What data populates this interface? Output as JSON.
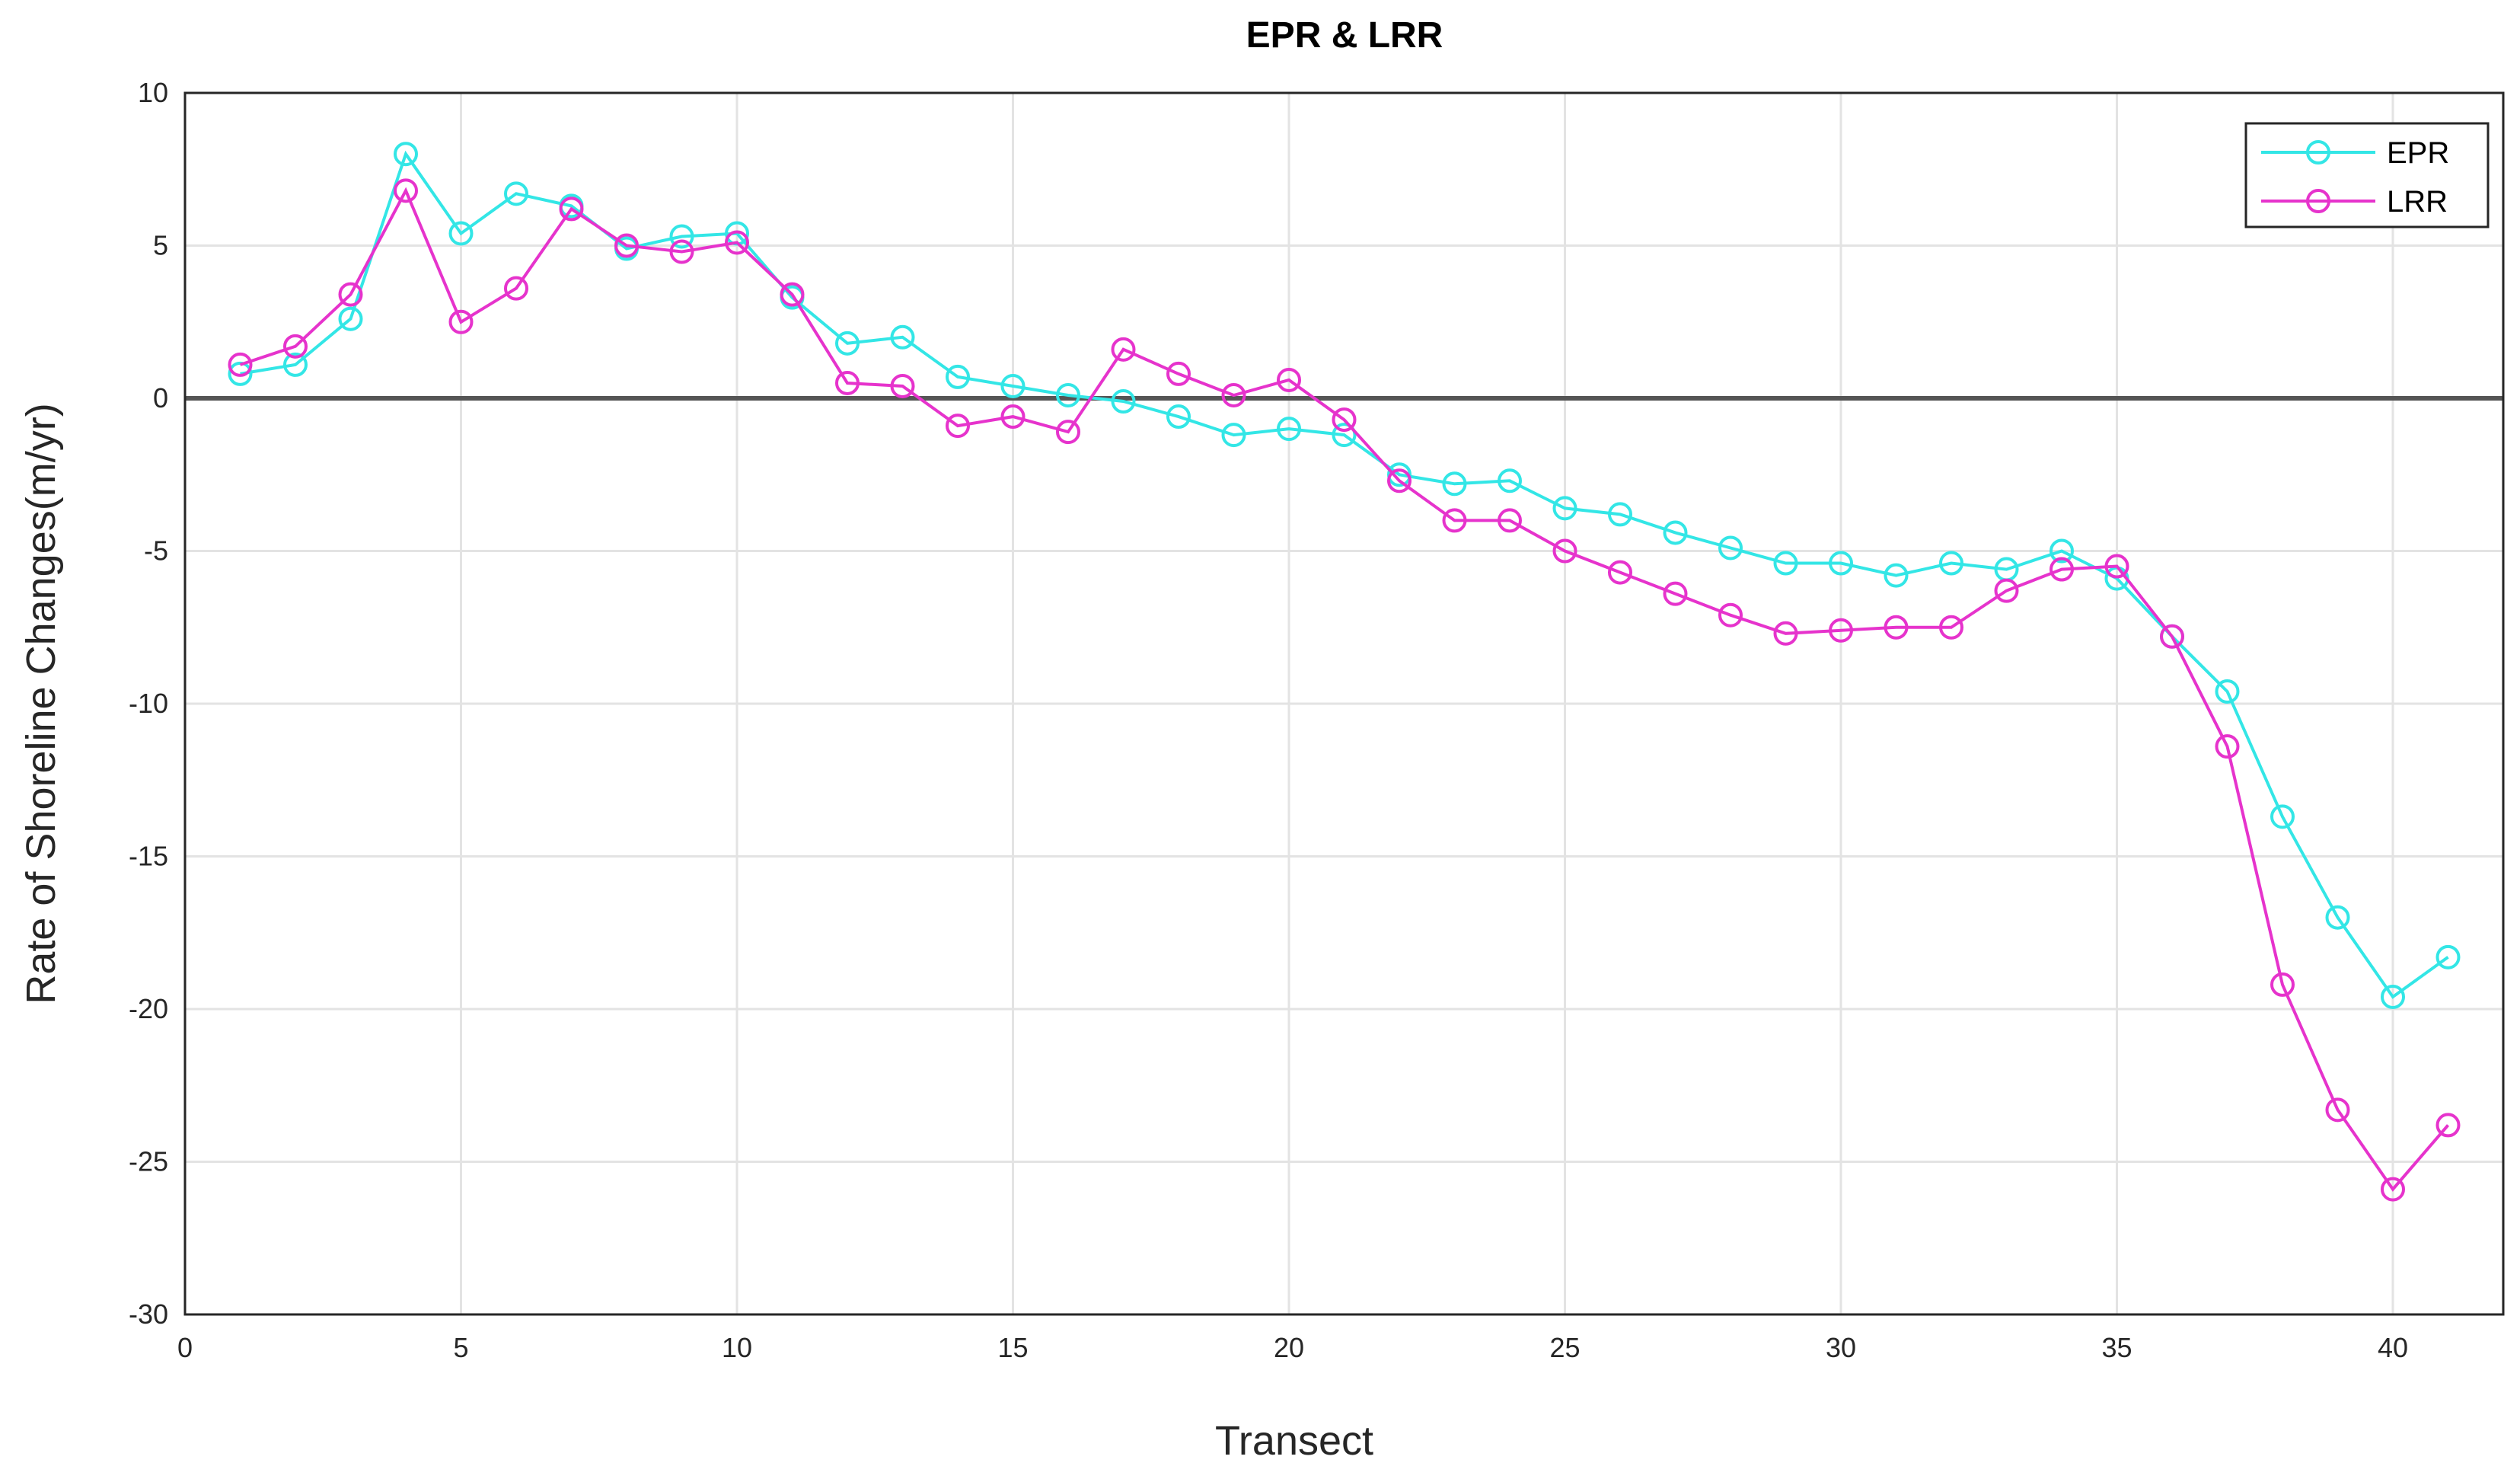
{
  "chart_data": {
    "type": "line",
    "title": "EPR & LRR",
    "xlabel": "Transect",
    "ylabel": "Rate of Shoreline Changes(m/yr)",
    "xlim": [
      0,
      42
    ],
    "ylim": [
      -30,
      10
    ],
    "xticks": [
      0,
      5,
      10,
      15,
      20,
      25,
      30,
      35,
      40
    ],
    "yticks": [
      10,
      5,
      0,
      -5,
      -10,
      -15,
      -20,
      -25,
      -30
    ],
    "grid": true,
    "legend_position": "top-right",
    "x": [
      1,
      2,
      3,
      4,
      5,
      6,
      7,
      8,
      9,
      10,
      11,
      12,
      13,
      14,
      15,
      16,
      17,
      18,
      19,
      20,
      21,
      22,
      23,
      24,
      25,
      26,
      27,
      28,
      29,
      30,
      31,
      32,
      33,
      34,
      35,
      36,
      37,
      38,
      39,
      40,
      41
    ],
    "series": [
      {
        "name": "EPR",
        "color": "#33e6e6",
        "marker": "circle",
        "values": [
          0.8,
          1.1,
          2.6,
          8.0,
          5.4,
          6.7,
          6.3,
          4.9,
          5.3,
          5.4,
          3.3,
          1.8,
          2.0,
          0.7,
          0.4,
          0.1,
          -0.1,
          -0.6,
          -1.2,
          -1.0,
          -1.2,
          -2.5,
          -2.8,
          -2.7,
          -3.6,
          -3.8,
          -4.4,
          -4.9,
          -5.4,
          -5.4,
          -5.8,
          -5.4,
          -5.6,
          -5.0,
          -5.9,
          -7.8,
          -9.6,
          -13.7,
          -17.0,
          -19.6,
          -18.3
        ]
      },
      {
        "name": "LRR",
        "color": "#e633cc",
        "marker": "circle",
        "values": [
          1.1,
          1.7,
          3.4,
          6.8,
          2.5,
          3.6,
          6.2,
          5.0,
          4.8,
          5.1,
          3.4,
          0.5,
          0.4,
          -0.9,
          -0.6,
          -1.1,
          1.6,
          0.8,
          0.1,
          0.6,
          -0.7,
          -2.7,
          -4.0,
          -4.0,
          -5.0,
          -5.7,
          -6.4,
          -7.1,
          -7.7,
          -7.6,
          -7.5,
          -7.5,
          -6.3,
          -5.6,
          -5.5,
          -7.8,
          -11.4,
          -19.2,
          -23.3,
          -25.9,
          -23.8
        ]
      }
    ]
  }
}
